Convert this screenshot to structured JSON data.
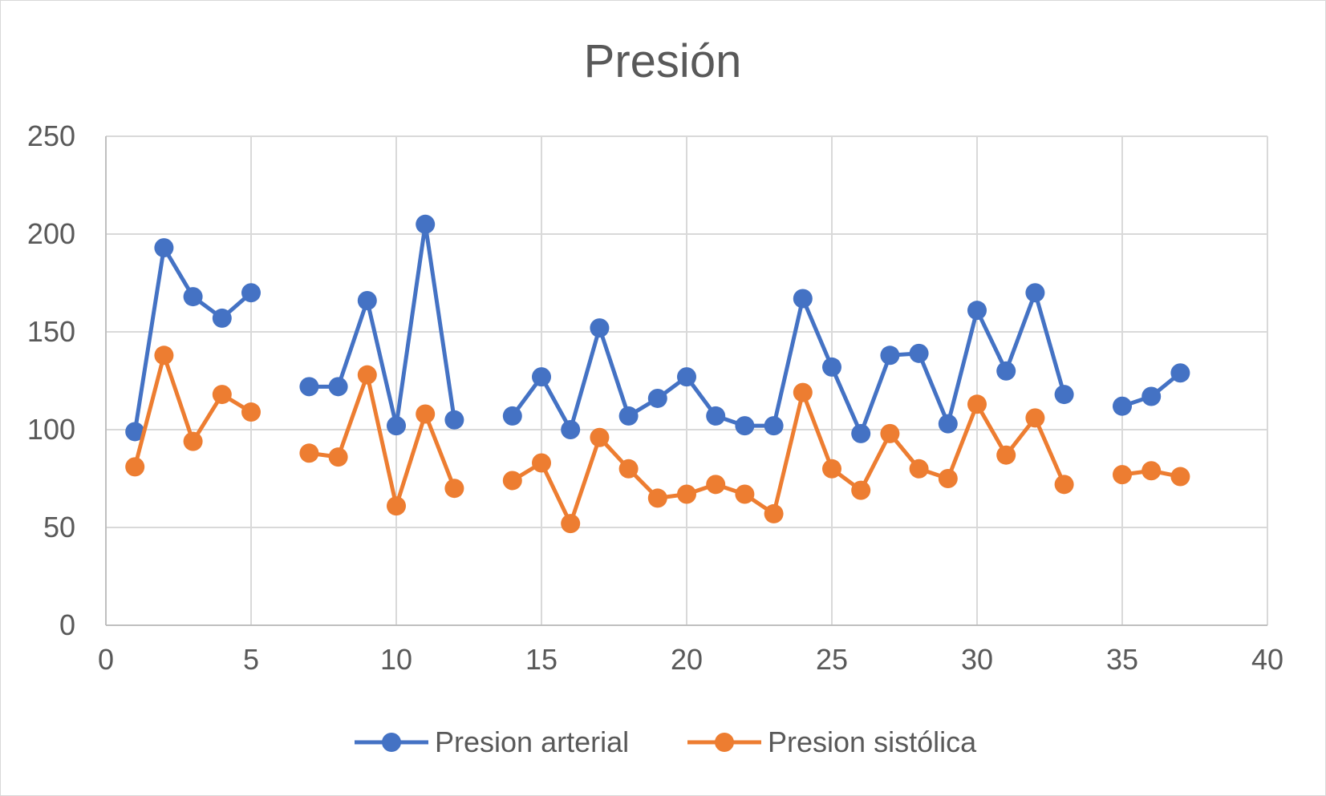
{
  "chart_data": {
    "type": "scatter",
    "title": "Presión",
    "xlabel": "",
    "ylabel": "",
    "xlim": [
      0,
      40
    ],
    "ylim": [
      0,
      250
    ],
    "xticks": [
      0,
      5,
      10,
      15,
      20,
      25,
      30,
      35,
      40
    ],
    "yticks": [
      0,
      50,
      100,
      150,
      200,
      250
    ],
    "grid": true,
    "legend": "bottom",
    "series": [
      {
        "name": "Presion arterial",
        "color": "#4472C4",
        "x": [
          1,
          2,
          3,
          4,
          5,
          6,
          7,
          8,
          9,
          10,
          11,
          12,
          13,
          14,
          15,
          16,
          17,
          18,
          19,
          20,
          21,
          22,
          23,
          24,
          25,
          26,
          27,
          28,
          29,
          30,
          31,
          32,
          33,
          34,
          35,
          36,
          37
        ],
        "values": [
          99,
          193,
          168,
          157,
          170,
          null,
          122,
          122,
          166,
          102,
          205,
          105,
          null,
          107,
          127,
          100,
          152,
          107,
          116,
          127,
          107,
          102,
          102,
          167,
          132,
          98,
          138,
          139,
          103,
          161,
          130,
          170,
          118,
          null,
          112,
          117,
          129
        ]
      },
      {
        "name": "Presion sistólica",
        "color": "#ED7D31",
        "x": [
          1,
          2,
          3,
          4,
          5,
          6,
          7,
          8,
          9,
          10,
          11,
          12,
          13,
          14,
          15,
          16,
          17,
          18,
          19,
          20,
          21,
          22,
          23,
          24,
          25,
          26,
          27,
          28,
          29,
          30,
          31,
          32,
          33,
          34,
          35,
          36,
          37
        ],
        "values": [
          81,
          138,
          94,
          118,
          109,
          null,
          88,
          86,
          128,
          61,
          108,
          70,
          null,
          74,
          83,
          52,
          96,
          80,
          65,
          67,
          72,
          67,
          57,
          119,
          80,
          69,
          98,
          80,
          75,
          113,
          87,
          106,
          72,
          null,
          77,
          79,
          76
        ]
      }
    ]
  }
}
